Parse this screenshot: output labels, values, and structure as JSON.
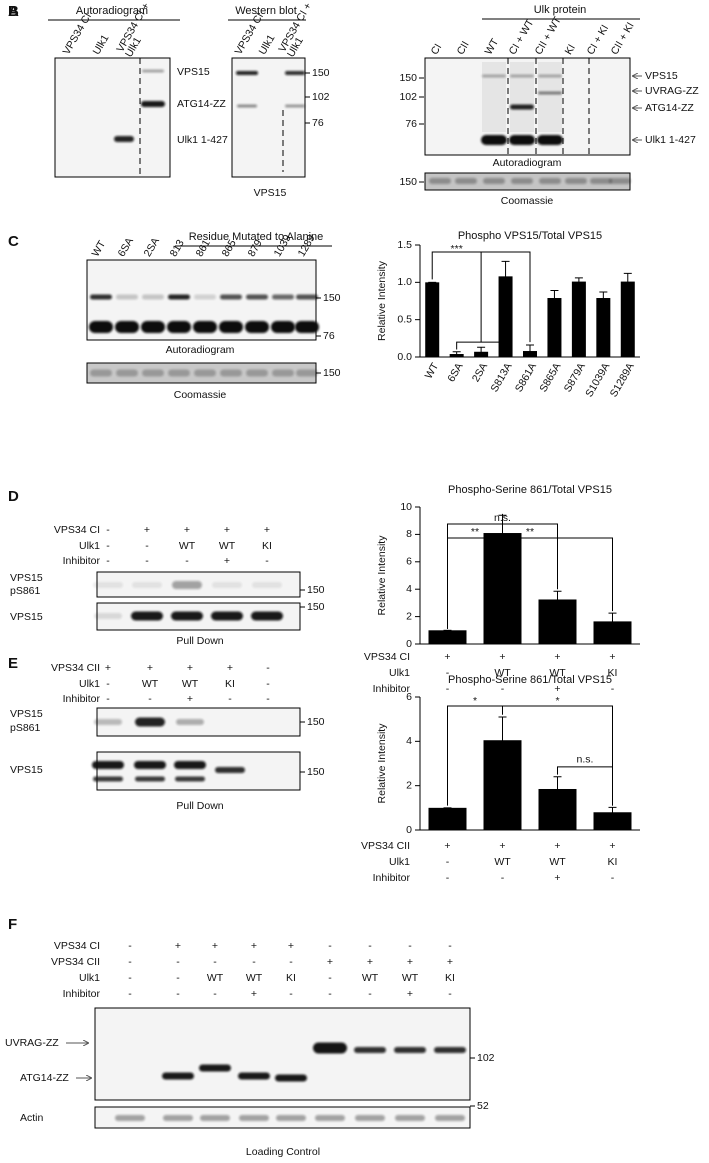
{
  "figure": {
    "A": {
      "letter": "A",
      "autoradiogram": {
        "title": "Autoradiogram",
        "lanes": [
          "VPS34 CI",
          "Ulk1",
          [
            "VPS34 CI +",
            "Ulk1"
          ]
        ],
        "bands": [
          "VPS15",
          "ATG14-ZZ",
          "Ulk1 1-427"
        ]
      },
      "western": {
        "title": "Western blot",
        "lanes": [
          "VPS34 CI",
          "Ulk1",
          [
            "VPS34 CI +",
            "Ulk1"
          ]
        ],
        "markers": [
          150,
          102,
          76
        ],
        "caption": "VPS15"
      }
    },
    "B": {
      "letter": "B",
      "header": "Ulk protein",
      "lanes": [
        "CI",
        "CII",
        "WT",
        "CI + WT",
        "CII + WT",
        "KI",
        "CI + KI",
        "CII + KI"
      ],
      "markers": [
        150,
        102,
        76
      ],
      "bands": [
        "VPS15",
        "UVRAG-ZZ",
        "ATG14-ZZ",
        "Ulk1 1-427"
      ],
      "caption": "Autoradiogram",
      "stain_marker": 150,
      "stain": "Coomassie"
    },
    "C": {
      "letter": "C",
      "header": "Residue Mutated to Alanine",
      "lanes": [
        "WT",
        "6SA",
        "2SA",
        "813",
        "861",
        "865",
        "879",
        "1039",
        "1289"
      ],
      "markers": [
        150,
        76
      ],
      "caption": "Autoradiogram",
      "stain_marker": 150,
      "stain": "Coomassie"
    },
    "D": {
      "letter": "D",
      "conditions": [
        {
          "label": "VPS34 CI",
          "values": [
            "-",
            "+",
            "+",
            "+",
            "+"
          ]
        },
        {
          "label": "Ulk1",
          "values": [
            "-",
            "-",
            "WT",
            "WT",
            "KI"
          ]
        },
        {
          "label": "Inhibitor",
          "values": [
            "-",
            "-",
            "-",
            "+",
            "-"
          ]
        }
      ],
      "blots": [
        {
          "label": [
            "VPS15",
            "pS861"
          ],
          "marker": 150
        },
        {
          "label": [
            "VPS15"
          ],
          "marker": 150
        }
      ],
      "caption": "Pull Down"
    },
    "E": {
      "letter": "E",
      "conditions": [
        {
          "label": "VPS34 CII",
          "values": [
            "+",
            "+",
            "+",
            "+",
            "-"
          ]
        },
        {
          "label": "Ulk1",
          "values": [
            "-",
            "WT",
            "WT",
            "KI",
            "-"
          ]
        },
        {
          "label": "Inhibitor",
          "values": [
            "-",
            "-",
            "+",
            "-",
            "-"
          ]
        }
      ],
      "blots": [
        {
          "label": [
            "VPS15",
            "pS861"
          ],
          "marker": 150
        },
        {
          "label": [
            "VPS15"
          ],
          "marker": 150
        }
      ],
      "caption": "Pull Down"
    },
    "F": {
      "letter": "F",
      "conditions": [
        {
          "label": "VPS34 CI",
          "values": [
            "-",
            "+",
            "+",
            "+",
            "+",
            "-",
            "-",
            "-",
            "-"
          ]
        },
        {
          "label": "VPS34 CII",
          "values": [
            "-",
            "-",
            "-",
            "-",
            "-",
            "+",
            "+",
            "+",
            "+"
          ]
        },
        {
          "label": "Ulk1",
          "values": [
            "-",
            "-",
            "WT",
            "WT",
            "KI",
            "-",
            "WT",
            "WT",
            "KI"
          ]
        },
        {
          "label": "Inhibitor",
          "values": [
            "-",
            "-",
            "-",
            "+",
            "-",
            "-",
            "-",
            "+",
            "-"
          ]
        }
      ],
      "bands": [
        "UVRAG-ZZ",
        "ATG14-ZZ"
      ],
      "markers": [
        102,
        52
      ],
      "loading": "Actin",
      "caption": "Loading Control"
    }
  },
  "chart_data": [
    {
      "type": "bar",
      "title": "Phospho VPS15/Total VPS15",
      "y_label": "Relative Intensity",
      "categories": [
        "WT",
        "6SA",
        "2SA",
        "S813A",
        "S861A",
        "S865A",
        "S879A",
        "S1039A",
        "S1289A"
      ],
      "values": [
        1.0,
        0.04,
        0.07,
        1.08,
        0.08,
        0.79,
        1.01,
        0.79,
        1.01
      ],
      "errors": [
        0,
        0.03,
        0.06,
        0.2,
        0.08,
        0.1,
        0.05,
        0.08,
        0.11
      ],
      "color": "#000000",
      "ylim": [
        0,
        1.5
      ],
      "yticks": [
        {
          "value": 0,
          "label": "0.0"
        },
        0.5,
        {
          "value": 1,
          "label": "1.0"
        },
        1.5
      ],
      "annotations": [
        "***"
      ]
    },
    {
      "type": "bar",
      "title": "Phospho-Serine 861/Total VPS15",
      "y_label": "Relative Intensity",
      "conditions": [
        {
          "label": "VPS34 CI",
          "values": [
            "+",
            "+",
            "+",
            "+"
          ]
        },
        {
          "label": "Ulk1",
          "values": [
            "-",
            "WT",
            "WT",
            "KI"
          ]
        },
        {
          "label": "Inhibitor",
          "values": [
            "-",
            "-",
            "+",
            "-"
          ]
        }
      ],
      "values": [
        1.0,
        8.1,
        3.25,
        1.65
      ],
      "errors": [
        0,
        1.3,
        0.6,
        0.6
      ],
      "color": "#000000",
      "ylim": [
        0,
        10
      ],
      "yticks": [
        0,
        2,
        4,
        6,
        8,
        10
      ],
      "annotations": [
        "n.s.",
        "**",
        "**"
      ]
    },
    {
      "type": "bar",
      "title": "Phospho-Serine 861/Total VPS15",
      "y_label": "Relative Intensity",
      "conditions": [
        {
          "label": "VPS34 CII",
          "values": [
            "+",
            "+",
            "+",
            "+"
          ]
        },
        {
          "label": "Ulk1",
          "values": [
            "-",
            "WT",
            "WT",
            "KI"
          ]
        },
        {
          "label": "Inhibitor",
          "values": [
            "-",
            "-",
            "+",
            "-"
          ]
        }
      ],
      "values": [
        1.0,
        4.05,
        1.85,
        0.8
      ],
      "errors": [
        0,
        1.05,
        0.55,
        0.22
      ],
      "color": "#000000",
      "ylim": [
        0,
        6
      ],
      "yticks": [
        0,
        2,
        4,
        6
      ],
      "annotations": [
        "*",
        "*",
        "n.s."
      ]
    }
  ]
}
